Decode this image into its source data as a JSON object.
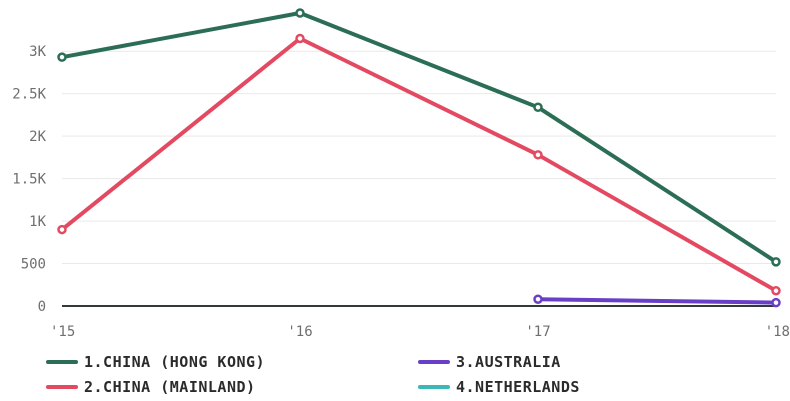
{
  "chart_data": {
    "type": "line",
    "x": [
      "'15",
      "'16",
      "'17",
      "'18"
    ],
    "ylim": [
      0,
      3600
    ],
    "y_ticks": [
      {
        "value": 0,
        "label": "0"
      },
      {
        "value": 500,
        "label": "500"
      },
      {
        "value": 1000,
        "label": "1K"
      },
      {
        "value": 1500,
        "label": "1.5K"
      },
      {
        "value": 2000,
        "label": "2K"
      },
      {
        "value": 2500,
        "label": "2.5K"
      },
      {
        "value": 3000,
        "label": "3K"
      }
    ],
    "grid": true,
    "legend_position": "bottom",
    "series": [
      {
        "name": "1.CHINA (HONG KONG)",
        "color": "#2b6e55",
        "values": [
          2930,
          3450,
          2340,
          520
        ]
      },
      {
        "name": "2.CHINA (MAINLAND)",
        "color": "#e34a62",
        "values": [
          900,
          3150,
          1780,
          180
        ]
      },
      {
        "name": "3.AUSTRALIA",
        "color": "#6a3fc8",
        "values": [
          null,
          null,
          80,
          40
        ]
      },
      {
        "name": "4.NETHERLANDS",
        "color": "#3ab8b8",
        "values": [
          null,
          null,
          null,
          null
        ]
      }
    ]
  }
}
